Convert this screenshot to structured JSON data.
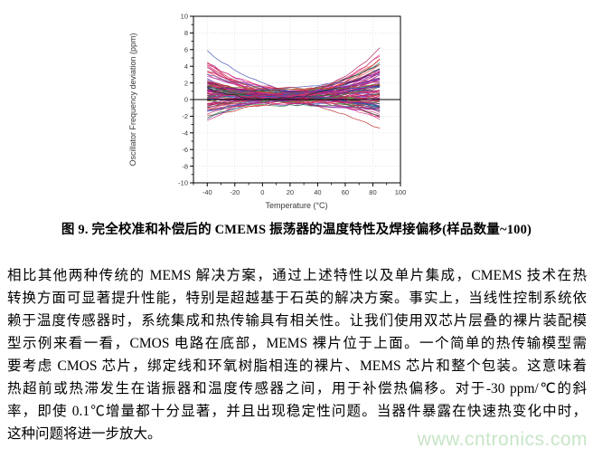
{
  "page": {
    "background": "#ffffff",
    "watermark": {
      "text": "www.cntronics.com",
      "color": "#c7e5c7"
    }
  },
  "figure": {
    "caption": "图 9. 完全校准和补偿后的 CMEMS 振荡器的温度特性及焊接偏移(样品数量~100)"
  },
  "body": {
    "lines": [
      "相比其他两种传统的 MEMS 解决方案，通过上述特性以及单片集成，CMEMS 技术在热",
      "转换方面可显著提升性能，特别是超越基于石英的解决方案。事实上，当线性控制系统依",
      "赖于温度传感器时，系统集成和热传输具有相关性。让我们使用双芯片层叠的裸片装配模",
      "型示例来看一看，CMOS 电路在底部，MEMS 裸片位于上面。一个简单的热传输模型需",
      "要考虑 CMOS 芯片，绑定线和环氧树脂相连的裸片、MEMS 芯片和整个包装。这意味着",
      "热超前或热滞发生在谐振器和温度传感器之间，用于补偿热偏移。对于-30 ppm/℃的斜",
      "率，即使 0.1℃增量都十分显著，并且出现稳定性问题。当器件暴露在快速热变化中时，",
      "这种问题将进一步放大。"
    ]
  },
  "chart_data": {
    "type": "line",
    "title": "",
    "xlabel": "Temperature (°C)",
    "ylabel": "Oscillator Frequency deviation (ppm)",
    "xlim": [
      -50,
      100
    ],
    "ylim": [
      -10,
      10
    ],
    "x_major_ticks": [
      -40,
      -20,
      0,
      20,
      40,
      60,
      80,
      100
    ],
    "x_minor_step": 10,
    "y_major_ticks": [
      -10,
      -8,
      -6,
      -4,
      -2,
      0,
      2,
      4,
      6,
      8,
      10
    ],
    "y_minor_step": 1,
    "grid": true,
    "zero_line": true,
    "legend": "none",
    "sample_count": 100,
    "data_x_range": [
      -40,
      85
    ],
    "x_step": 5,
    "envelope_ppm": {
      "at_minus40C": [
        -5.2,
        7.0
      ],
      "at_20C_waist": [
        -0.9,
        2.2
      ],
      "at_85C": [
        -2.6,
        6.7
      ]
    },
    "line_model": {
      "seed": 7,
      "center_range": [
        -0.8,
        1.6
      ],
      "quad_range": [
        -2.8,
        4.3
      ],
      "slope_range": [
        -1.8,
        2.0
      ],
      "noise": 0.13
    },
    "palette": [
      "#c2185b",
      "#d81b60",
      "#e91e8c",
      "#ad1457",
      "#880e4f",
      "#9c27b0",
      "#7b1fa2",
      "#6a1b9a",
      "#4a148c",
      "#aa00aa",
      "#3949ab",
      "#283593",
      "#1a237e",
      "#3f51b5",
      "#1565c0",
      "#c62828",
      "#b71c1c",
      "#e53935",
      "#ef6292",
      "#cc3366",
      "#2e7d32",
      "#558b2f",
      "#827717",
      "#00695c",
      "#212121",
      "#5d4037",
      "#c2417f",
      "#d63384",
      "#8b2fa0",
      "#356bb3"
    ],
    "colors": {
      "frame": "#000000",
      "grid": "#dadada",
      "zero_line": "#000000",
      "tick_label": "#3a3a3a",
      "axis_label": "#3a3a3a"
    }
  }
}
